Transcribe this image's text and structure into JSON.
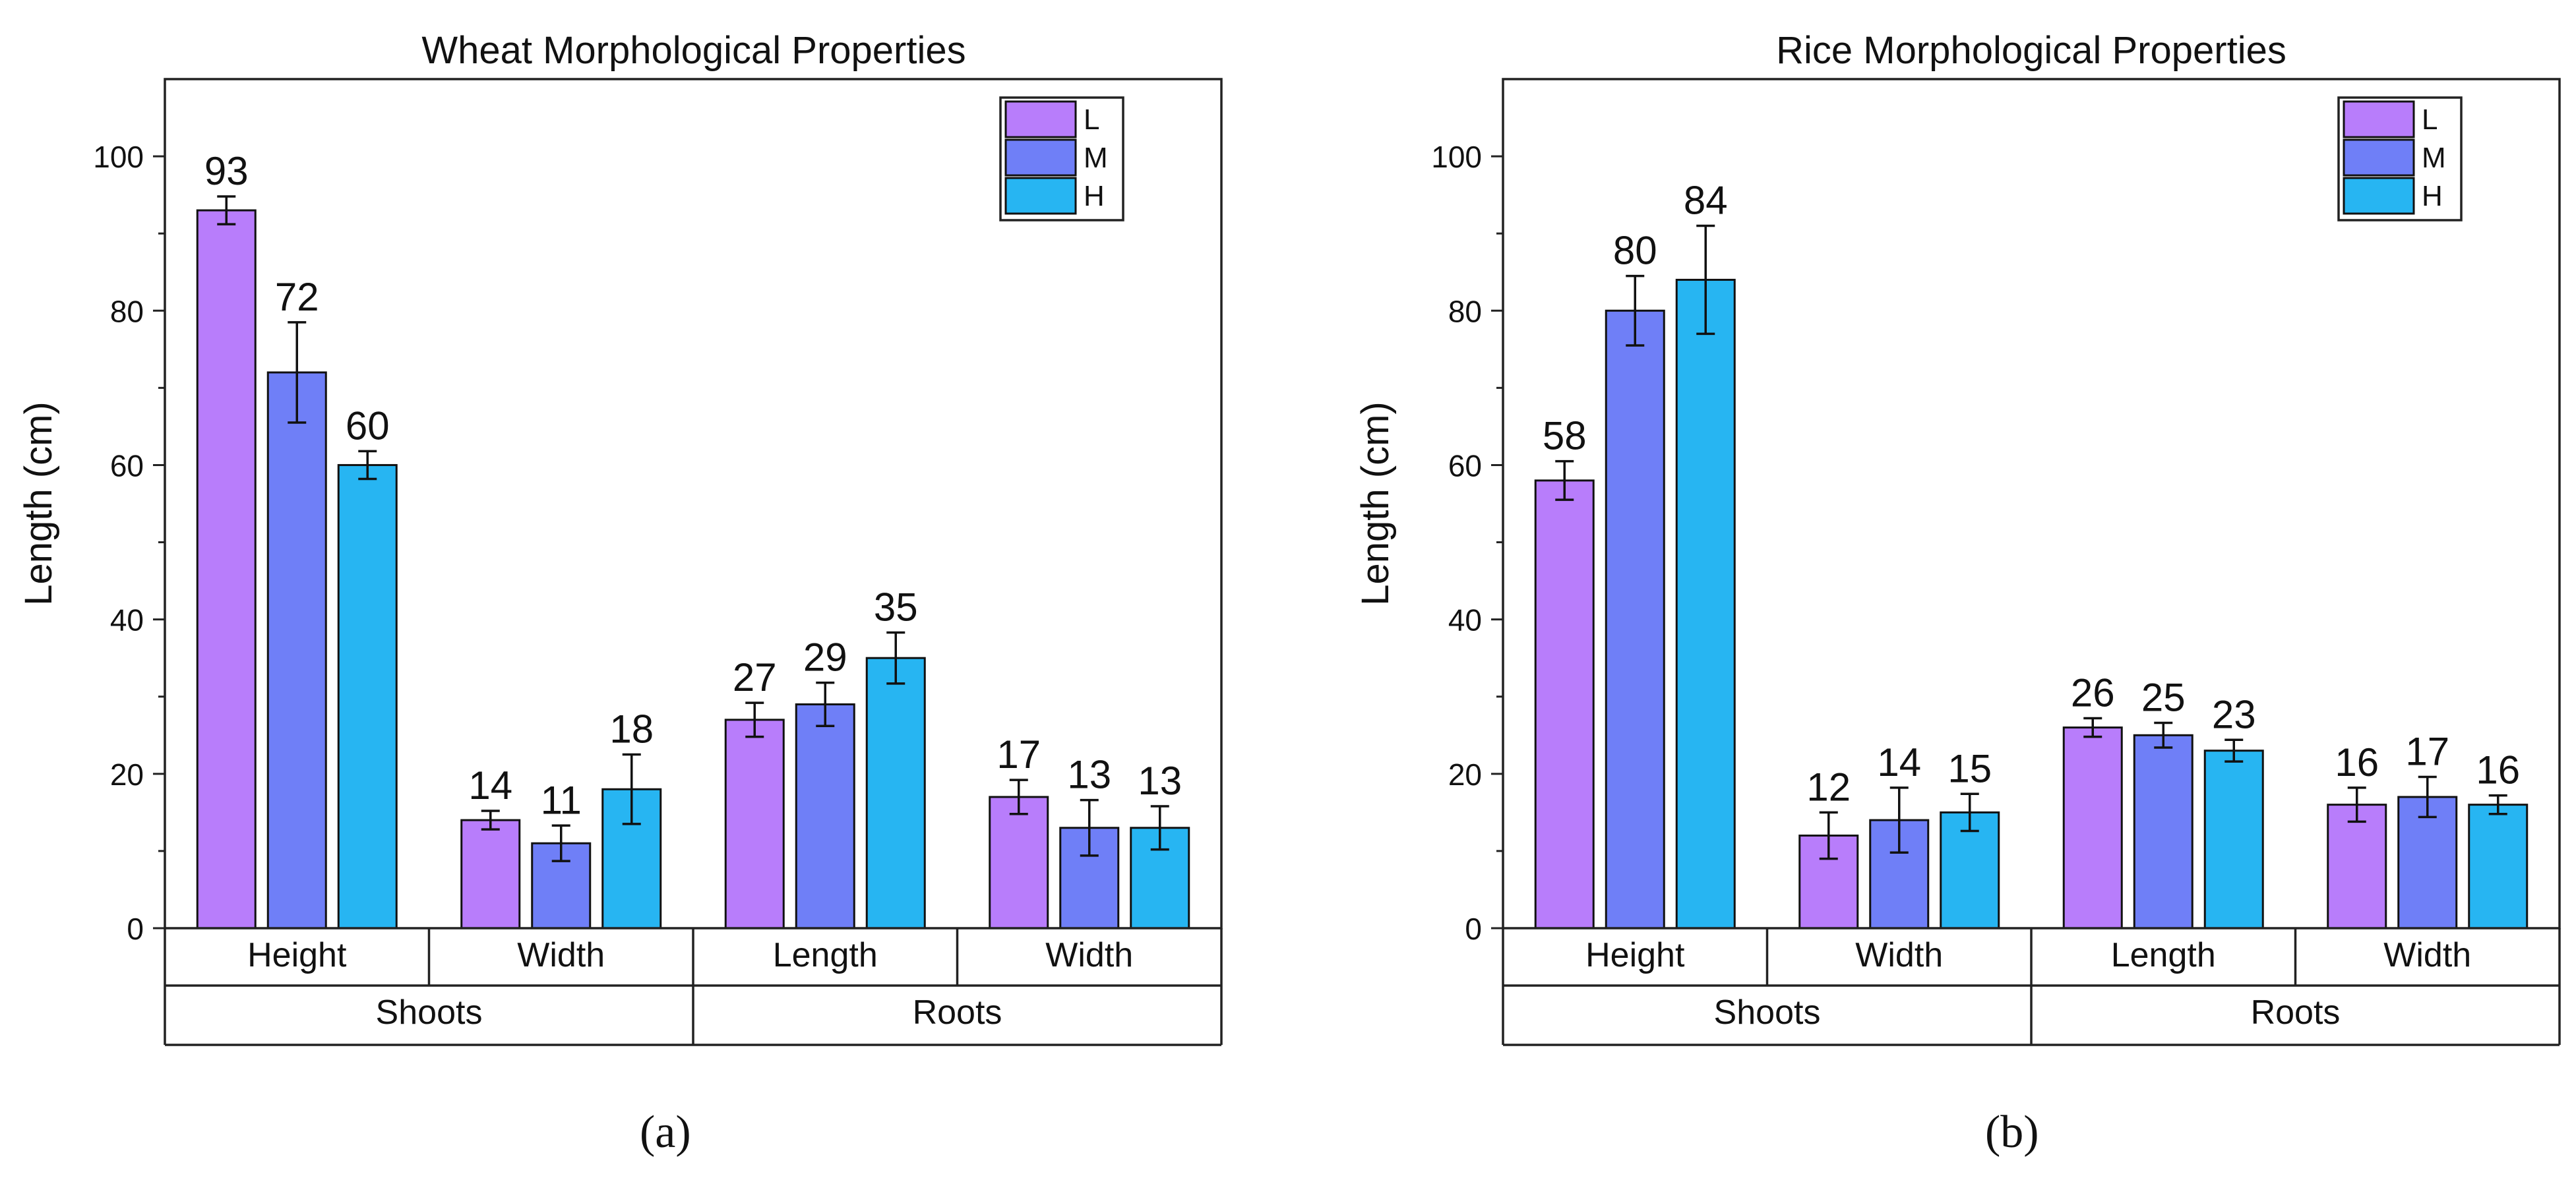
{
  "chart_data": [
    {
      "panel_label": "(a)",
      "type": "bar",
      "title": "Wheat Morphological Properties",
      "ylabel": "Length (cm)",
      "xlabel": "",
      "ylim": [
        0,
        110
      ],
      "yticks": [
        0,
        20,
        40,
        60,
        80,
        100
      ],
      "grid": false,
      "legend_position": "top-right",
      "categories": [
        "Height",
        "Width",
        "Length",
        "Width"
      ],
      "groups": [
        {
          "label": "Shoots",
          "categories": [
            "Height",
            "Width"
          ]
        },
        {
          "label": "Roots",
          "categories": [
            "Length",
            "Width"
          ]
        }
      ],
      "series": [
        {
          "name": "L",
          "color": "#b87dfb",
          "values": [
            93,
            14,
            27,
            17
          ],
          "errors": [
            1.8,
            1.2,
            2.2,
            2.2
          ]
        },
        {
          "name": "M",
          "color": "#6f7ff7",
          "values": [
            72,
            11,
            29,
            13
          ],
          "errors": [
            6.5,
            2.3,
            2.8,
            3.6
          ]
        },
        {
          "name": "H",
          "color": "#27b5f2",
          "values": [
            60,
            18,
            35,
            13
          ],
          "errors": [
            1.8,
            4.5,
            3.3,
            2.8
          ]
        }
      ],
      "data_labels": [
        [
          "93",
          "14",
          "27",
          "17"
        ],
        [
          "72",
          "11",
          "29",
          "13"
        ],
        [
          "60",
          "18",
          "35",
          "13"
        ]
      ]
    },
    {
      "panel_label": "(b)",
      "type": "bar",
      "title": "Rice Morphological Properties",
      "ylabel": "Length (cm)",
      "xlabel": "",
      "ylim": [
        0,
        110
      ],
      "yticks": [
        0,
        20,
        40,
        60,
        80,
        100
      ],
      "grid": false,
      "legend_position": "top-right",
      "categories": [
        "Height",
        "Width",
        "Length",
        "Width"
      ],
      "groups": [
        {
          "label": "Shoots",
          "categories": [
            "Height",
            "Width"
          ]
        },
        {
          "label": "Roots",
          "categories": [
            "Length",
            "Width"
          ]
        }
      ],
      "series": [
        {
          "name": "L",
          "color": "#b87dfb",
          "values": [
            58,
            12,
            26,
            16
          ],
          "errors": [
            2.5,
            3.0,
            1.2,
            2.2
          ]
        },
        {
          "name": "M",
          "color": "#6f7ff7",
          "values": [
            80,
            14,
            25,
            17
          ],
          "errors": [
            4.5,
            4.2,
            1.6,
            2.6
          ]
        },
        {
          "name": "H",
          "color": "#27b5f2",
          "values": [
            84,
            15,
            23,
            16
          ],
          "errors": [
            7.0,
            2.4,
            1.4,
            1.2
          ]
        }
      ],
      "data_labels": [
        [
          "58",
          "12",
          "26",
          "16"
        ],
        [
          "80",
          "14",
          "25",
          "17"
        ],
        [
          "84",
          "15",
          "23",
          "16"
        ]
      ]
    }
  ]
}
